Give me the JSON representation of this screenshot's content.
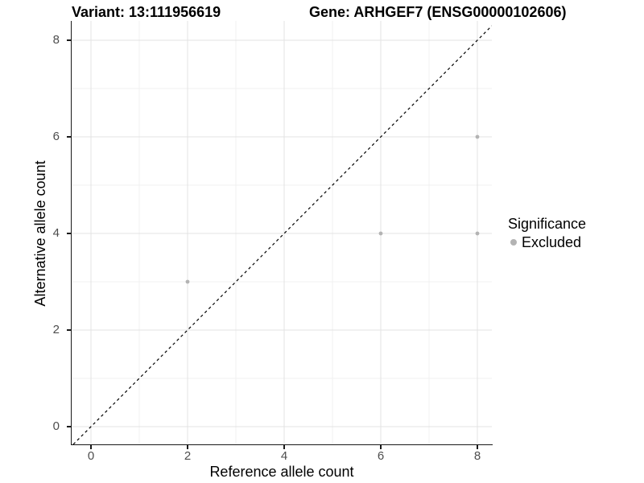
{
  "chart_data": {
    "type": "scatter",
    "title_left": "Variant: 13:111956619",
    "title_right": "Gene: ARHGEF7 (ENSG00000102606)",
    "xlabel": "Reference allele count",
    "ylabel": "Alternative allele count",
    "xlim": [
      -0.4,
      8.3
    ],
    "ylim": [
      -0.3667,
      8.4
    ],
    "x_ticks": [
      0,
      2,
      4,
      6,
      8
    ],
    "y_ticks": [
      0,
      2,
      4,
      6,
      8
    ],
    "x_minor_ticks": [
      1,
      3,
      5,
      7
    ],
    "y_minor_ticks": [
      1,
      3,
      5,
      7
    ],
    "grid": "major+minor",
    "series": [
      {
        "name": "Excluded",
        "color": "#b3b3b3",
        "points": [
          [
            2,
            3
          ],
          [
            6,
            4
          ],
          [
            8,
            4
          ],
          [
            8,
            6
          ]
        ]
      }
    ],
    "identity_line": {
      "equation": "y = x",
      "style": "dashed",
      "color": "#000000"
    },
    "legend": {
      "title": "Significance",
      "position": "right",
      "entries": [
        {
          "label": "Excluded",
          "color": "#b3b3b3",
          "marker": "circle"
        }
      ]
    },
    "colors": {
      "background": "#ffffff",
      "grid_major": "#e3e3e3",
      "grid_minor": "#f0f0f0",
      "axis": "#1a1a1a",
      "tick_label": "#4d4d4d",
      "text": "#000000"
    }
  }
}
